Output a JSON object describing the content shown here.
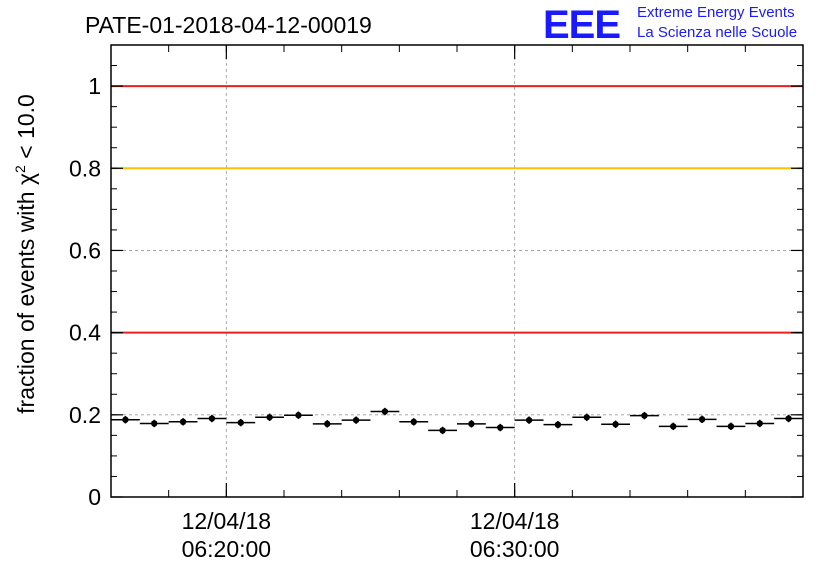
{
  "title": "PATE-01-2018-04-12-00019",
  "logo": {
    "mark": "EEE",
    "line1": "Extreme Energy Events",
    "line2": "La Scienza nelle Scuole",
    "color": "#1a1aff"
  },
  "colors": {
    "red_line": "#e8201c",
    "yellow_line": "#ffc000",
    "grid": "#999999"
  },
  "chart_data": {
    "type": "scatter",
    "title": "PATE-01-2018-04-12-00019",
    "ylabel": "fraction of events with χ² < 10.0",
    "ylabel_parts": {
      "prefix": "fraction of events with ",
      "chi": "χ",
      "exp": "2",
      "suffix": " < 10.0"
    },
    "xlabel": "",
    "xlim": [
      "06:16:00",
      "06:40:00"
    ],
    "ylim": [
      0,
      1.1
    ],
    "y_ticks": [
      0,
      0.2,
      0.4,
      0.6,
      0.8,
      1
    ],
    "y_tick_labels": [
      "0",
      "0.2",
      "0.4",
      "0.6",
      "0.8",
      "1"
    ],
    "x_major_ticks": [
      {
        "time": "06:20:00",
        "date": "12/04/18"
      },
      {
        "time": "06:30:00",
        "date": "12/04/18"
      }
    ],
    "x_minor_tick_minutes": 2,
    "grid": true,
    "reference_lines": [
      {
        "y": 1.0,
        "color": "red"
      },
      {
        "y": 0.8,
        "color": "yellow"
      },
      {
        "y": 0.4,
        "color": "red"
      }
    ],
    "bin_width_minutes": 1,
    "series": [
      {
        "x": [
          "06:16:30",
          "06:17:30",
          "06:18:30",
          "06:19:30",
          "06:20:30",
          "06:21:30",
          "06:22:30",
          "06:23:30",
          "06:24:30",
          "06:25:30",
          "06:26:30",
          "06:27:30",
          "06:28:30",
          "06:29:30",
          "06:30:30",
          "06:31:30",
          "06:32:30",
          "06:33:30",
          "06:34:30",
          "06:35:30",
          "06:36:30",
          "06:37:30",
          "06:38:30",
          "06:39:30"
        ],
        "y": [
          0.188,
          0.179,
          0.183,
          0.191,
          0.181,
          0.194,
          0.199,
          0.178,
          0.187,
          0.208,
          0.183,
          0.162,
          0.178,
          0.169,
          0.187,
          0.176,
          0.194,
          0.177,
          0.198,
          0.172,
          0.189,
          0.172,
          0.179,
          0.191
        ],
        "yerr": 0.009
      }
    ]
  }
}
